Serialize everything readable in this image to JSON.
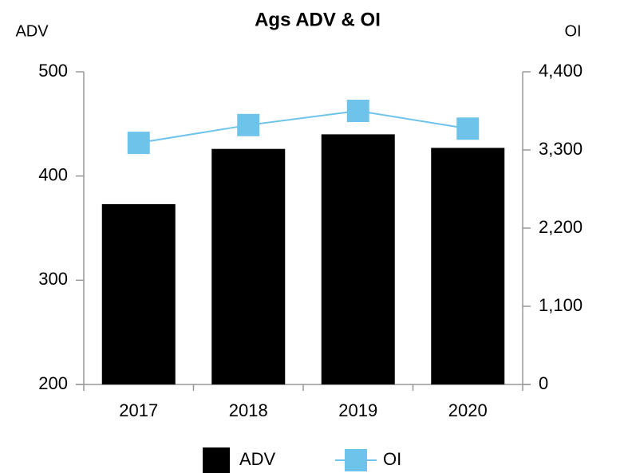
{
  "chart_data": {
    "type": "bar",
    "title": "Ags ADV & OI",
    "ylabel": "ADV",
    "y2label": "OI",
    "categories": [
      "2017",
      "2018",
      "2019",
      "2020"
    ],
    "series": [
      {
        "name": "ADV",
        "color": "#000000",
        "type": "bar",
        "values": [
          373,
          426,
          440,
          427
        ]
      },
      {
        "name": "OI",
        "color": "#6ec3ea",
        "type": "line",
        "axis": "y2",
        "values": [
          3400,
          3650,
          3850,
          3600
        ]
      }
    ],
    "ylim": [
      200,
      500
    ],
    "yticks": [
      200,
      300,
      400,
      500
    ],
    "y2lim": [
      0,
      4400
    ],
    "y2ticks": [
      0,
      {
        "value": 1100,
        "label": "1,100"
      },
      {
        "value": 2200,
        "label": "2,200"
      },
      {
        "value": 3300,
        "label": "3,300"
      },
      {
        "value": 4400,
        "label": "4,400"
      }
    ],
    "legend": "bottom"
  }
}
